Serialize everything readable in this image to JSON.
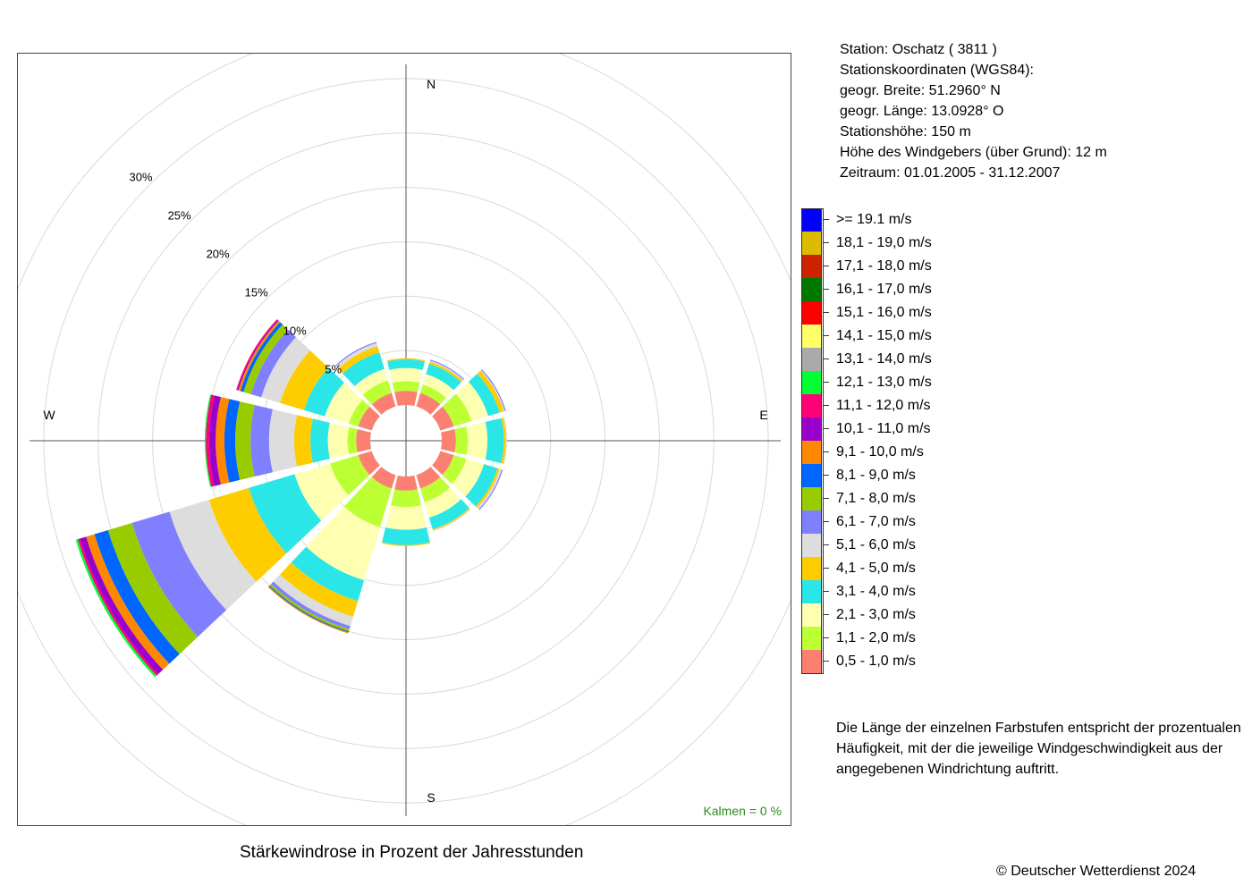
{
  "station": {
    "line1": "Station:  Oschatz  ( 3811 )",
    "line2": "Stationskoordinaten (WGS84):",
    "line3": "geogr. Breite: 51.2960° N",
    "line4": "geogr. Länge: 13.0928° O",
    "line5": "Stationshöhe: 150 m",
    "line6": "Höhe des Windgebers (über Grund): 12 m",
    "line7": "Zeitraum: 01.01.2005 - 31.12.2007"
  },
  "note": "Die Länge der einzelnen Farbstufen entspricht der prozentualen Häufigkeit, mit der die jeweilige Windgeschwindigkeit aus der angegebenen Windrichtung auftritt.",
  "copyright": "© Deutscher Wetterdienst  2024",
  "calm_label": "Kalmen  =  0 %",
  "chart_data": {
    "type": "wind-rose",
    "title": "Stärkewindrose in Prozent der Jahresstunden",
    "directions": [
      "N",
      "NNE",
      "ENE",
      "E",
      "ESE",
      "SSE",
      "S",
      "SSW",
      "WSW",
      "W",
      "WNW",
      "NNW"
    ],
    "direction_angles_deg": [
      0,
      30,
      60,
      90,
      120,
      150,
      180,
      210,
      240,
      270,
      300,
      330
    ],
    "compass_labels": [
      "N",
      "E",
      "S",
      "W"
    ],
    "radial_ticks": [
      {
        "value": 5,
        "label": "5%"
      },
      {
        "value": 10,
        "label": "10%"
      },
      {
        "value": 15,
        "label": "15%"
      },
      {
        "value": 20,
        "label": "20%"
      },
      {
        "value": 25,
        "label": "25%"
      },
      {
        "value": 30,
        "label": "30%"
      }
    ],
    "radial_max": 35,
    "calm_percent": 0,
    "speed_classes": [
      {
        "label": "0,5 - 1,0 m/s",
        "color": "#fb8072"
      },
      {
        "label": "1,1 - 2,0 m/s",
        "color": "#bcff33"
      },
      {
        "label": "2,1 - 3,0 m/s",
        "color": "#ffffb2"
      },
      {
        "label": "3,1 - 4,0 m/s",
        "color": "#2ae6e6"
      },
      {
        "label": "4,1 - 5,0 m/s",
        "color": "#ffcc00"
      },
      {
        "label": "5,1 - 6,0 m/s",
        "color": "#dddddd"
      },
      {
        "label": "6,1 - 7,0 m/s",
        "color": "#8080ff"
      },
      {
        "label": "7,1 - 8,0 m/s",
        "color": "#99cc00"
      },
      {
        "label": "8,1 - 9,0 m/s",
        "color": "#0066ff"
      },
      {
        "label": "9,1 - 10,0 m/s",
        "color": "#ff8800"
      },
      {
        "label": "10,1 - 11,0 m/s",
        "color": "#9900cc"
      },
      {
        "label": "11,1 - 12,0 m/s",
        "color": "#ff0077"
      },
      {
        "label": "12,1 - 13,0 m/s",
        "color": "#00ff33"
      },
      {
        "label": "13,1 - 14,0 m/s",
        "color": "#aaaaaa"
      },
      {
        "label": "14,1 - 15,0 m/s",
        "color": "#ffff66"
      },
      {
        "label": "15,1 - 16,0 m/s",
        "color": "#ff0000"
      },
      {
        "label": "16,1 - 17,0 m/s",
        "color": "#007700"
      },
      {
        "label": "17,1 - 18,0 m/s",
        "color": "#cc2200"
      },
      {
        "label": "18,1 - 19,0 m/s",
        "color": "#ddbb00"
      },
      {
        "label": ">= 19.1 m/s",
        "color": "#0000ff"
      }
    ],
    "cumulative_percent": [
      [
        1.3,
        2.2,
        3.4,
        4.2,
        4.3,
        4.3,
        4.3,
        4.3,
        4.3,
        4.3,
        4.3,
        4.3,
        4.3,
        4.3,
        4.3,
        4.3,
        4.3,
        4.3,
        4.3,
        4.3
      ],
      [
        1.3,
        2.1,
        3.1,
        4.1,
        4.3,
        4.4,
        4.5,
        4.5,
        4.5,
        4.5,
        4.5,
        4.5,
        4.5,
        4.5,
        4.5,
        4.5,
        4.5,
        4.5,
        4.5,
        4.5
      ],
      [
        1.3,
        3.0,
        4.6,
        5.7,
        6.1,
        6.2,
        6.3,
        6.3,
        6.3,
        6.3,
        6.3,
        6.3,
        6.3,
        6.3,
        6.3,
        6.3,
        6.3,
        6.3,
        6.3,
        6.3
      ],
      [
        1.3,
        2.4,
        4.2,
        5.7,
        5.9,
        6.0,
        6.0,
        6.0,
        6.0,
        6.0,
        6.0,
        6.0,
        6.0,
        6.0,
        6.0,
        6.0,
        6.0,
        6.0,
        6.0,
        6.0
      ],
      [
        1.3,
        2.5,
        4.2,
        5.5,
        5.7,
        5.9,
        6.0,
        6.0,
        6.0,
        6.0,
        6.0,
        6.0,
        6.0,
        6.0,
        6.0,
        6.0,
        6.0,
        6.0,
        6.0,
        6.0
      ],
      [
        1.3,
        2.6,
        4.1,
        5.2,
        5.3,
        5.4,
        5.4,
        5.4,
        5.4,
        5.4,
        5.4,
        5.4,
        5.4,
        5.4,
        5.4,
        5.4,
        5.4,
        5.4,
        5.4,
        5.4
      ],
      [
        1.3,
        2.8,
        4.9,
        6.3,
        6.4,
        6.4,
        6.4,
        6.4,
        6.4,
        6.4,
        6.4,
        6.4,
        6.4,
        6.4,
        6.4,
        6.4,
        6.4,
        6.4,
        6.4,
        6.4
      ],
      [
        1.3,
        5.0,
        10.1,
        12.1,
        13.6,
        14.5,
        14.8,
        15.0,
        15.1,
        15.2,
        15.2,
        15.2,
        15.2,
        15.2,
        15.2,
        15.2,
        15.2,
        15.2,
        15.2,
        15.2
      ],
      [
        1.3,
        4.0,
        7.4,
        11.8,
        15.6,
        19.4,
        23.0,
        25.3,
        26.6,
        27.4,
        28.0,
        28.2,
        28.4,
        28.4,
        28.4,
        28.4,
        28.4,
        28.4,
        28.4,
        28.4
      ],
      [
        1.3,
        2.1,
        3.9,
        5.5,
        7.0,
        9.3,
        11.0,
        12.4,
        13.4,
        14.2,
        14.8,
        15.1,
        15.2,
        15.2,
        15.2,
        15.2,
        15.2,
        15.2,
        15.2,
        15.2
      ],
      [
        1.3,
        2.2,
        4.5,
        6.5,
        8.8,
        10.6,
        11.6,
        12.3,
        12.6,
        12.8,
        12.9,
        13.0,
        13.0,
        13.0,
        13.0,
        13.0,
        13.0,
        13.0,
        13.0,
        13.0
      ],
      [
        1.3,
        2.5,
        3.6,
        5.2,
        5.8,
        6.1,
        6.2,
        6.2,
        6.2,
        6.2,
        6.2,
        6.2,
        6.2,
        6.2,
        6.2,
        6.2,
        6.2,
        6.2,
        6.2,
        6.2
      ]
    ]
  }
}
